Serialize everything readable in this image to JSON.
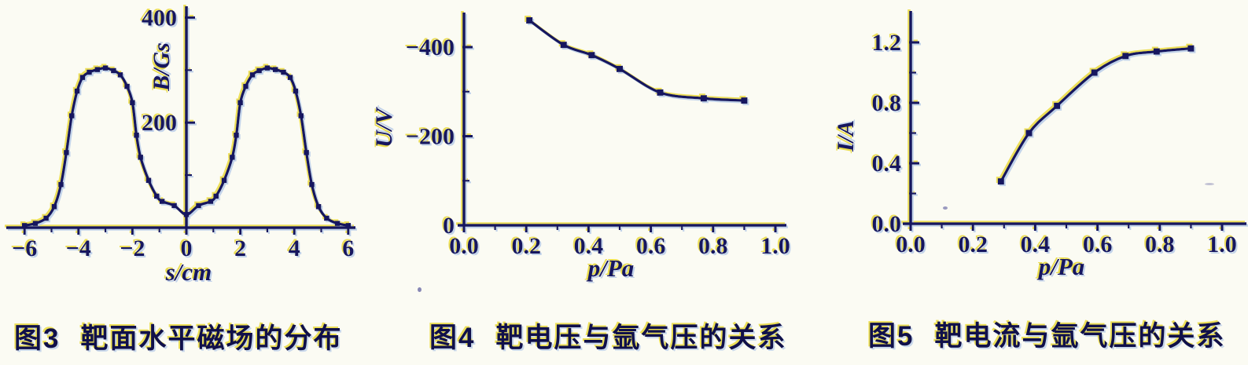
{
  "page": {
    "background_color": "#fbfbf3",
    "ink_color": "#16165f",
    "fringe_yellow": "#e9d93c",
    "fringe_blue": "#a9c1e6"
  },
  "figures": [
    {
      "caption_label": "图3",
      "caption_text": "靶面水平磁场的分布",
      "y_axis_label": "B/Gs",
      "x_axis_label": "s/cm"
    },
    {
      "caption_label": "图4",
      "caption_text": "靶电压与氩气压的关系",
      "y_axis_label": "U/V",
      "x_axis_label": "p/Pa"
    },
    {
      "caption_label": "图5",
      "caption_text": "靶电流与氩气压的关系",
      "y_axis_label": "I/A",
      "x_axis_label": "p/Pa"
    }
  ],
  "chart_data": [
    {
      "type": "line",
      "title": "图3 靶面水平磁场的分布",
      "xlabel": "s/cm",
      "ylabel": "B/Gs",
      "xlim": [
        -6.7,
        6.7
      ],
      "ylim": [
        0,
        430
      ],
      "grid": false,
      "legend_position": "none",
      "x_ticks": {
        "values": [
          -6,
          -4,
          -2,
          0,
          2,
          4,
          6
        ],
        "labels": [
          "−6",
          "−4",
          "−2",
          "0",
          "2",
          "4",
          "6"
        ]
      },
      "x_minor_ticks": [
        -5,
        -3,
        -1,
        1,
        3,
        5
      ],
      "y_ticks": {
        "values": [
          200,
          400
        ],
        "labels": [
          "200",
          "400"
        ]
      },
      "y_minor_ticks": [
        100,
        300
      ],
      "series": [
        {
          "name": "B",
          "marker": "square",
          "points": [
            [
              -6,
              4
            ],
            [
              -5.6,
              8
            ],
            [
              -5.2,
              18
            ],
            [
              -4.9,
              40
            ],
            [
              -4.65,
              82
            ],
            [
              -4.45,
              143
            ],
            [
              -4.25,
              213
            ],
            [
              -4.05,
              260
            ],
            [
              -3.85,
              286
            ],
            [
              -3.6,
              296
            ],
            [
              -3.3,
              301
            ],
            [
              -3,
              304
            ],
            [
              -2.7,
              299
            ],
            [
              -2.45,
              291
            ],
            [
              -2.2,
              269
            ],
            [
              -2,
              238
            ],
            [
              -1.85,
              176
            ],
            [
              -1.7,
              134
            ],
            [
              -1.4,
              90
            ],
            [
              -1.1,
              60
            ],
            [
              -0.9,
              50
            ],
            [
              -0.45,
              42
            ],
            [
              0,
              25
            ],
            [
              0.45,
              42
            ],
            [
              0.9,
              50
            ],
            [
              1.1,
              60
            ],
            [
              1.4,
              90
            ],
            [
              1.7,
              134
            ],
            [
              1.85,
              176
            ],
            [
              2,
              238
            ],
            [
              2.2,
              269
            ],
            [
              2.45,
              291
            ],
            [
              2.7,
              299
            ],
            [
              3,
              304
            ],
            [
              3.3,
              301
            ],
            [
              3.6,
              296
            ],
            [
              3.85,
              286
            ],
            [
              4.05,
              260
            ],
            [
              4.25,
              213
            ],
            [
              4.45,
              143
            ],
            [
              4.65,
              82
            ],
            [
              4.9,
              40
            ],
            [
              5.2,
              18
            ],
            [
              5.6,
              8
            ],
            [
              6,
              4
            ]
          ]
        }
      ]
    },
    {
      "type": "line",
      "title": "图4 靶电压与氩气压的关系",
      "xlabel": "p/Pa",
      "ylabel": "U/V",
      "xlim": [
        0,
        1.05
      ],
      "ylim": [
        0,
        -480
      ],
      "grid": false,
      "legend_position": "none",
      "x_ticks": {
        "values": [
          0,
          0.2,
          0.4,
          0.6,
          0.8,
          1
        ],
        "labels": [
          "0.0",
          "0.2",
          "0.4",
          "0.6",
          "0.8",
          "1.0"
        ]
      },
      "x_minor_ticks": [
        0.1,
        0.3,
        0.5,
        0.7,
        0.9
      ],
      "y_ticks": {
        "values": [
          0,
          -200,
          -400
        ],
        "labels": [
          "0",
          "−200",
          "−400"
        ]
      },
      "y_minor_ticks": [
        -100,
        -300
      ],
      "series": [
        {
          "name": "U",
          "marker": "square",
          "points": [
            [
              0.21,
              -460
            ],
            [
              0.32,
              -405
            ],
            [
              0.41,
              -382
            ],
            [
              0.5,
              -351
            ],
            [
              0.63,
              -298
            ],
            [
              0.77,
              -285
            ],
            [
              0.9,
              -280
            ]
          ]
        }
      ]
    },
    {
      "type": "line",
      "title": "图5 靶电流与氩气压的关系",
      "xlabel": "p/Pa",
      "ylabel": "I/A",
      "xlim": [
        0,
        1.08
      ],
      "ylim": [
        0,
        1.45
      ],
      "grid": false,
      "legend_position": "none",
      "x_ticks": {
        "values": [
          0,
          0.2,
          0.4,
          0.6,
          0.8,
          1
        ],
        "labels": [
          "0.0",
          "0.2",
          "0.4",
          "0.6",
          "0.8",
          "1.0"
        ]
      },
      "x_minor_ticks": [
        0.1,
        0.3,
        0.5,
        0.7,
        0.9
      ],
      "y_ticks": {
        "values": [
          0,
          0.4,
          0.8,
          1.2
        ],
        "labels": [
          "0.0",
          "0.4",
          "0.8",
          "1.2"
        ]
      },
      "y_minor_ticks": [
        0.2,
        0.6,
        1.0
      ],
      "series": [
        {
          "name": "I",
          "marker": "square",
          "points": [
            [
              0.29,
              0.28
            ],
            [
              0.38,
              0.6
            ],
            [
              0.47,
              0.78
            ],
            [
              0.59,
              1.0
            ],
            [
              0.69,
              1.11
            ],
            [
              0.79,
              1.14
            ],
            [
              0.9,
              1.16
            ]
          ]
        }
      ]
    }
  ]
}
